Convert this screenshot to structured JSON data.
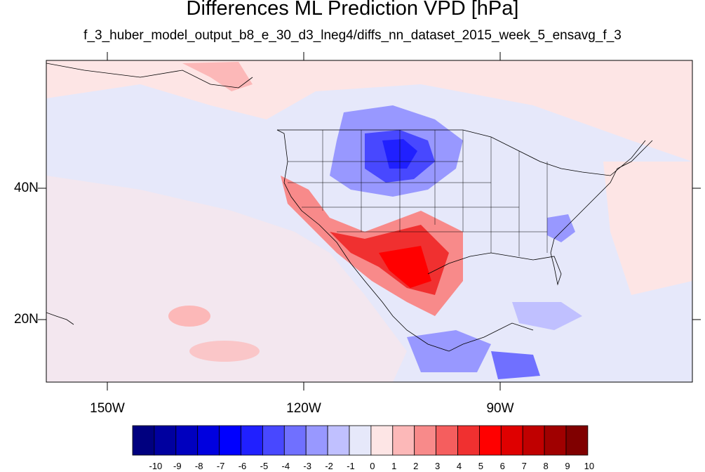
{
  "title": "Differences ML Prediction VPD [hPa]",
  "subtitle": "f_3_huber_model_output_b8_e_30_d3_lneg4/diffs_nn_dataset_2015_week_5_ensavg_f_3",
  "map": {
    "lat_labels": [
      "40N",
      "20N"
    ],
    "lon_labels": [
      "150W",
      "120W",
      "90W"
    ],
    "ocean_tint": "#e6e8fa"
  },
  "colorbar": {
    "labels": [
      "-10",
      "-9",
      "-8",
      "-7",
      "-6",
      "-5",
      "-4",
      "-3",
      "-2",
      "-1",
      "0",
      "1",
      "2",
      "3",
      "4",
      "5",
      "6",
      "7",
      "8",
      "9",
      "10"
    ],
    "colors": [
      "#00007f",
      "#00009f",
      "#0000bf",
      "#0000df",
      "#0000ff",
      "#2020ff",
      "#4848ff",
      "#7070ff",
      "#9898ff",
      "#c0c0ff",
      "#e6e8fa",
      "#fde5e5",
      "#fcb8b8",
      "#f88a8a",
      "#f55e5e",
      "#f03030",
      "#ff0000",
      "#df0000",
      "#c00000",
      "#a00000",
      "#800000"
    ]
  }
}
